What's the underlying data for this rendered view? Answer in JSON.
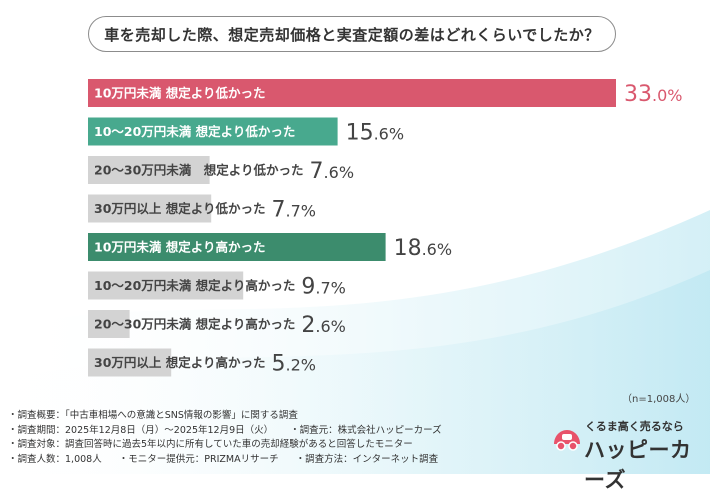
{
  "title": "車を売却した際、想定売却価格と実査定額の差はどれくらいでしたか？",
  "sample_size": "（n=1,008人）",
  "chart_data": {
    "type": "bar",
    "orientation": "horizontal",
    "categories": [
      "10万円未満 想定より低かった",
      "10～20万円未満 想定より低かった",
      "20～30万円未満　想定より低かった",
      "30万円以上 想定より低かった",
      "10万円未満 想定より高かった",
      "10～20万円未満 想定より高かった",
      "20～30万円未満 想定より高かった",
      "30万円以上 想定より高かった"
    ],
    "values": [
      33.0,
      15.6,
      7.6,
      7.7,
      18.6,
      9.7,
      2.6,
      5.2
    ],
    "value_labels": [
      "33.0%",
      "15.6%",
      "7.6%",
      "7.7%",
      "18.6%",
      "9.7%",
      "2.6%",
      "5.2%"
    ],
    "xlim": [
      0,
      37
    ],
    "grid": false,
    "colors": {
      "highlight_low": "#d9586e",
      "low": "#48a98e",
      "high_highlight": "#3c8c6d",
      "other": "#d3d3d3",
      "value_highlight": "#d9586e",
      "value_other": "#444444"
    },
    "highlight": [
      true,
      true,
      false,
      false,
      true,
      false,
      false,
      false
    ],
    "bar_color_keys": [
      "highlight_low",
      "low",
      "other",
      "other",
      "high_highlight",
      "other",
      "other",
      "other"
    ]
  },
  "footer": {
    "line1": "・調査概要：「中古車相場への意識とSNS情報の影響」に関する調査",
    "line2a": "・調査期間：2025年12月8日（月）～2025年12月9日（火）",
    "line2b": "・調査元：株式会社ハッピーカーズ",
    "line3": "・調査対象：調査回答時に過去5年以内に所有していた車の売却経験があると回答したモニター",
    "line4a": "・調査人数：1,008人",
    "line4b": "・モニター提供元：PRIZMAリサーチ",
    "line4c": "・調査方法：インターネット調査"
  },
  "logo": {
    "tagline": "くるま高く売るなら",
    "name": "ハッピーカーズ"
  }
}
